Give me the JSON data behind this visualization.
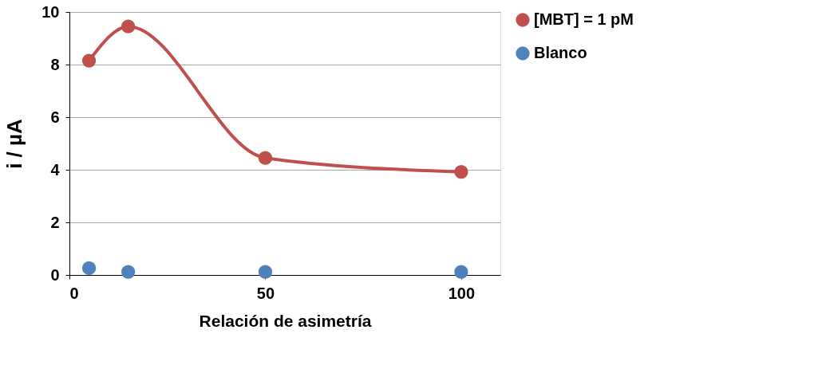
{
  "chart_data": {
    "type": "line",
    "xlabel": "Relación de asimetría",
    "ylabel": "i / µA",
    "xlim": [
      0,
      110
    ],
    "xticks": [
      0,
      50,
      100
    ],
    "ylim": [
      0,
      10
    ],
    "yticks": [
      0,
      2,
      4,
      6,
      8,
      10
    ],
    "grid": "y",
    "legend": "right",
    "marker": "circle",
    "line_style": "solid",
    "series": [
      {
        "name": "[MBT] = 1 pM",
        "type": "line",
        "color": "#c0504d",
        "x": [
          5,
          15,
          50,
          100
        ],
        "values": [
          8.15,
          9.45,
          4.45,
          3.92
        ]
      },
      {
        "name": "Blanco",
        "type": "scatter",
        "color": "#4f81bd",
        "x": [
          5,
          15,
          50,
          100
        ],
        "values": [
          0.26,
          0.12,
          0.12,
          0.12
        ]
      }
    ]
  }
}
